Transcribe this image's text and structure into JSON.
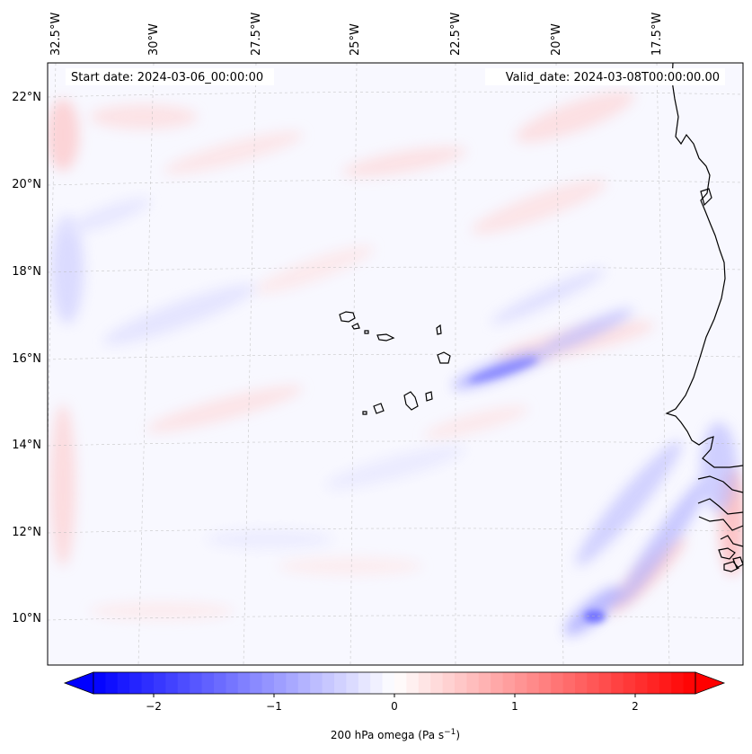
{
  "map": {
    "start_date": "Start date: 2024-03-06_00:00:00",
    "valid_date": "Valid_date: 2024-03-08T00:00:00.00",
    "lon_labels": [
      "32.5°W",
      "30°W",
      "27.5°W",
      "25°W",
      "22.5°W",
      "20°W",
      "17.5°W"
    ],
    "lat_labels": [
      "22°N",
      "20°N",
      "18°N",
      "16°N",
      "14°N",
      "12°N",
      "10°N"
    ],
    "land_features": [
      "Cabo Verde islands",
      "West African coastline"
    ]
  },
  "colorbar": {
    "label": "200 hPa omega (Pa s",
    "label_exp": "−1",
    "label_close": ")",
    "ticks": [
      "−2",
      "−1",
      "0",
      "1",
      "2"
    ],
    "tick_values": [
      -2,
      -1,
      0,
      1,
      2
    ],
    "vmin": -2.5,
    "vmax": 2.5,
    "colors": {
      "min": "#0000ff",
      "mid": "#ffffff",
      "max": "#ff0000"
    }
  },
  "chart_data": {
    "type": "heatmap",
    "title": "",
    "variable": "200 hPa omega",
    "units": "Pa s^-1",
    "range": [
      -2.5,
      2.5
    ],
    "colormap": "bwr",
    "x_labels": [
      "32.5°W",
      "30°W",
      "27.5°W",
      "25°W",
      "22.5°W",
      "20°W",
      "17.5°W"
    ],
    "y_labels": [
      "22°N",
      "20°N",
      "18°N",
      "16°N",
      "14°N",
      "12°N",
      "10°N"
    ]
  }
}
